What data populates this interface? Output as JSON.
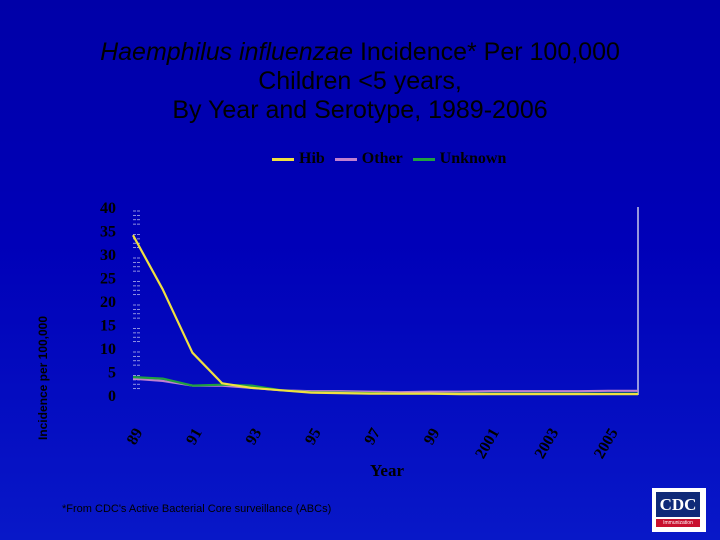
{
  "title": {
    "italic_part": "Haemphilus influenzae",
    "line1_rest": " Incidence* Per 100,000",
    "line2": "Children <5 years,",
    "line3": "By Year and Serotype, 1989-2006"
  },
  "footnote": "*From CDC's Active Bacterial Core surveillance (ABCs)",
  "logo": {
    "text": "CDC",
    "bar_text": "Immunization"
  },
  "colors": {
    "background": "#0000b0",
    "hib": "#f0e040",
    "other": "#c080d0",
    "unknown": "#20a040",
    "text": "#000000"
  },
  "chart_data": {
    "type": "line",
    "title": "Haemphilus influenzae Incidence* Per 100,000 Children <5 years, By Year and Serotype, 1989-2006",
    "xlabel": "Year",
    "ylabel": "Incidence per 100,000",
    "ylim": [
      0,
      40
    ],
    "yticks": [
      0,
      5,
      10,
      15,
      20,
      25,
      30,
      35,
      40
    ],
    "x": [
      1989,
      1990,
      1991,
      1992,
      1993,
      1994,
      1995,
      1996,
      1997,
      1998,
      1999,
      2000,
      2001,
      2002,
      2003,
      2004,
      2005,
      2006
    ],
    "xtick_labels": [
      "89",
      "91",
      "93",
      "95",
      "97",
      "99",
      "2001",
      "2003",
      "2005"
    ],
    "xtick_values": [
      1989,
      1991,
      1993,
      1995,
      1997,
      1999,
      2001,
      2003,
      2005
    ],
    "legend_position": "top",
    "series": [
      {
        "name": "Hib",
        "color_key": "hib",
        "values": [
          34.0,
          22.5,
          9.0,
          2.5,
          1.5,
          1.0,
          0.5,
          0.4,
          0.3,
          0.3,
          0.3,
          0.2,
          0.2,
          0.2,
          0.2,
          0.2,
          0.2,
          0.2
        ]
      },
      {
        "name": "Other",
        "color_key": "other",
        "values": [
          3.5,
          3.0,
          2.0,
          2.0,
          1.5,
          1.0,
          0.8,
          0.8,
          0.7,
          0.6,
          0.7,
          0.7,
          0.8,
          0.8,
          0.8,
          0.8,
          0.9,
          0.9
        ]
      },
      {
        "name": "Unknown",
        "color_key": "unknown",
        "values": [
          3.8,
          3.5,
          2.0,
          2.2,
          2.0,
          1.0,
          0.6,
          0.5,
          0.4,
          0.3,
          0.3,
          0.3,
          0.3,
          0.3,
          0.3,
          0.3,
          0.3,
          0.3
        ]
      }
    ]
  }
}
